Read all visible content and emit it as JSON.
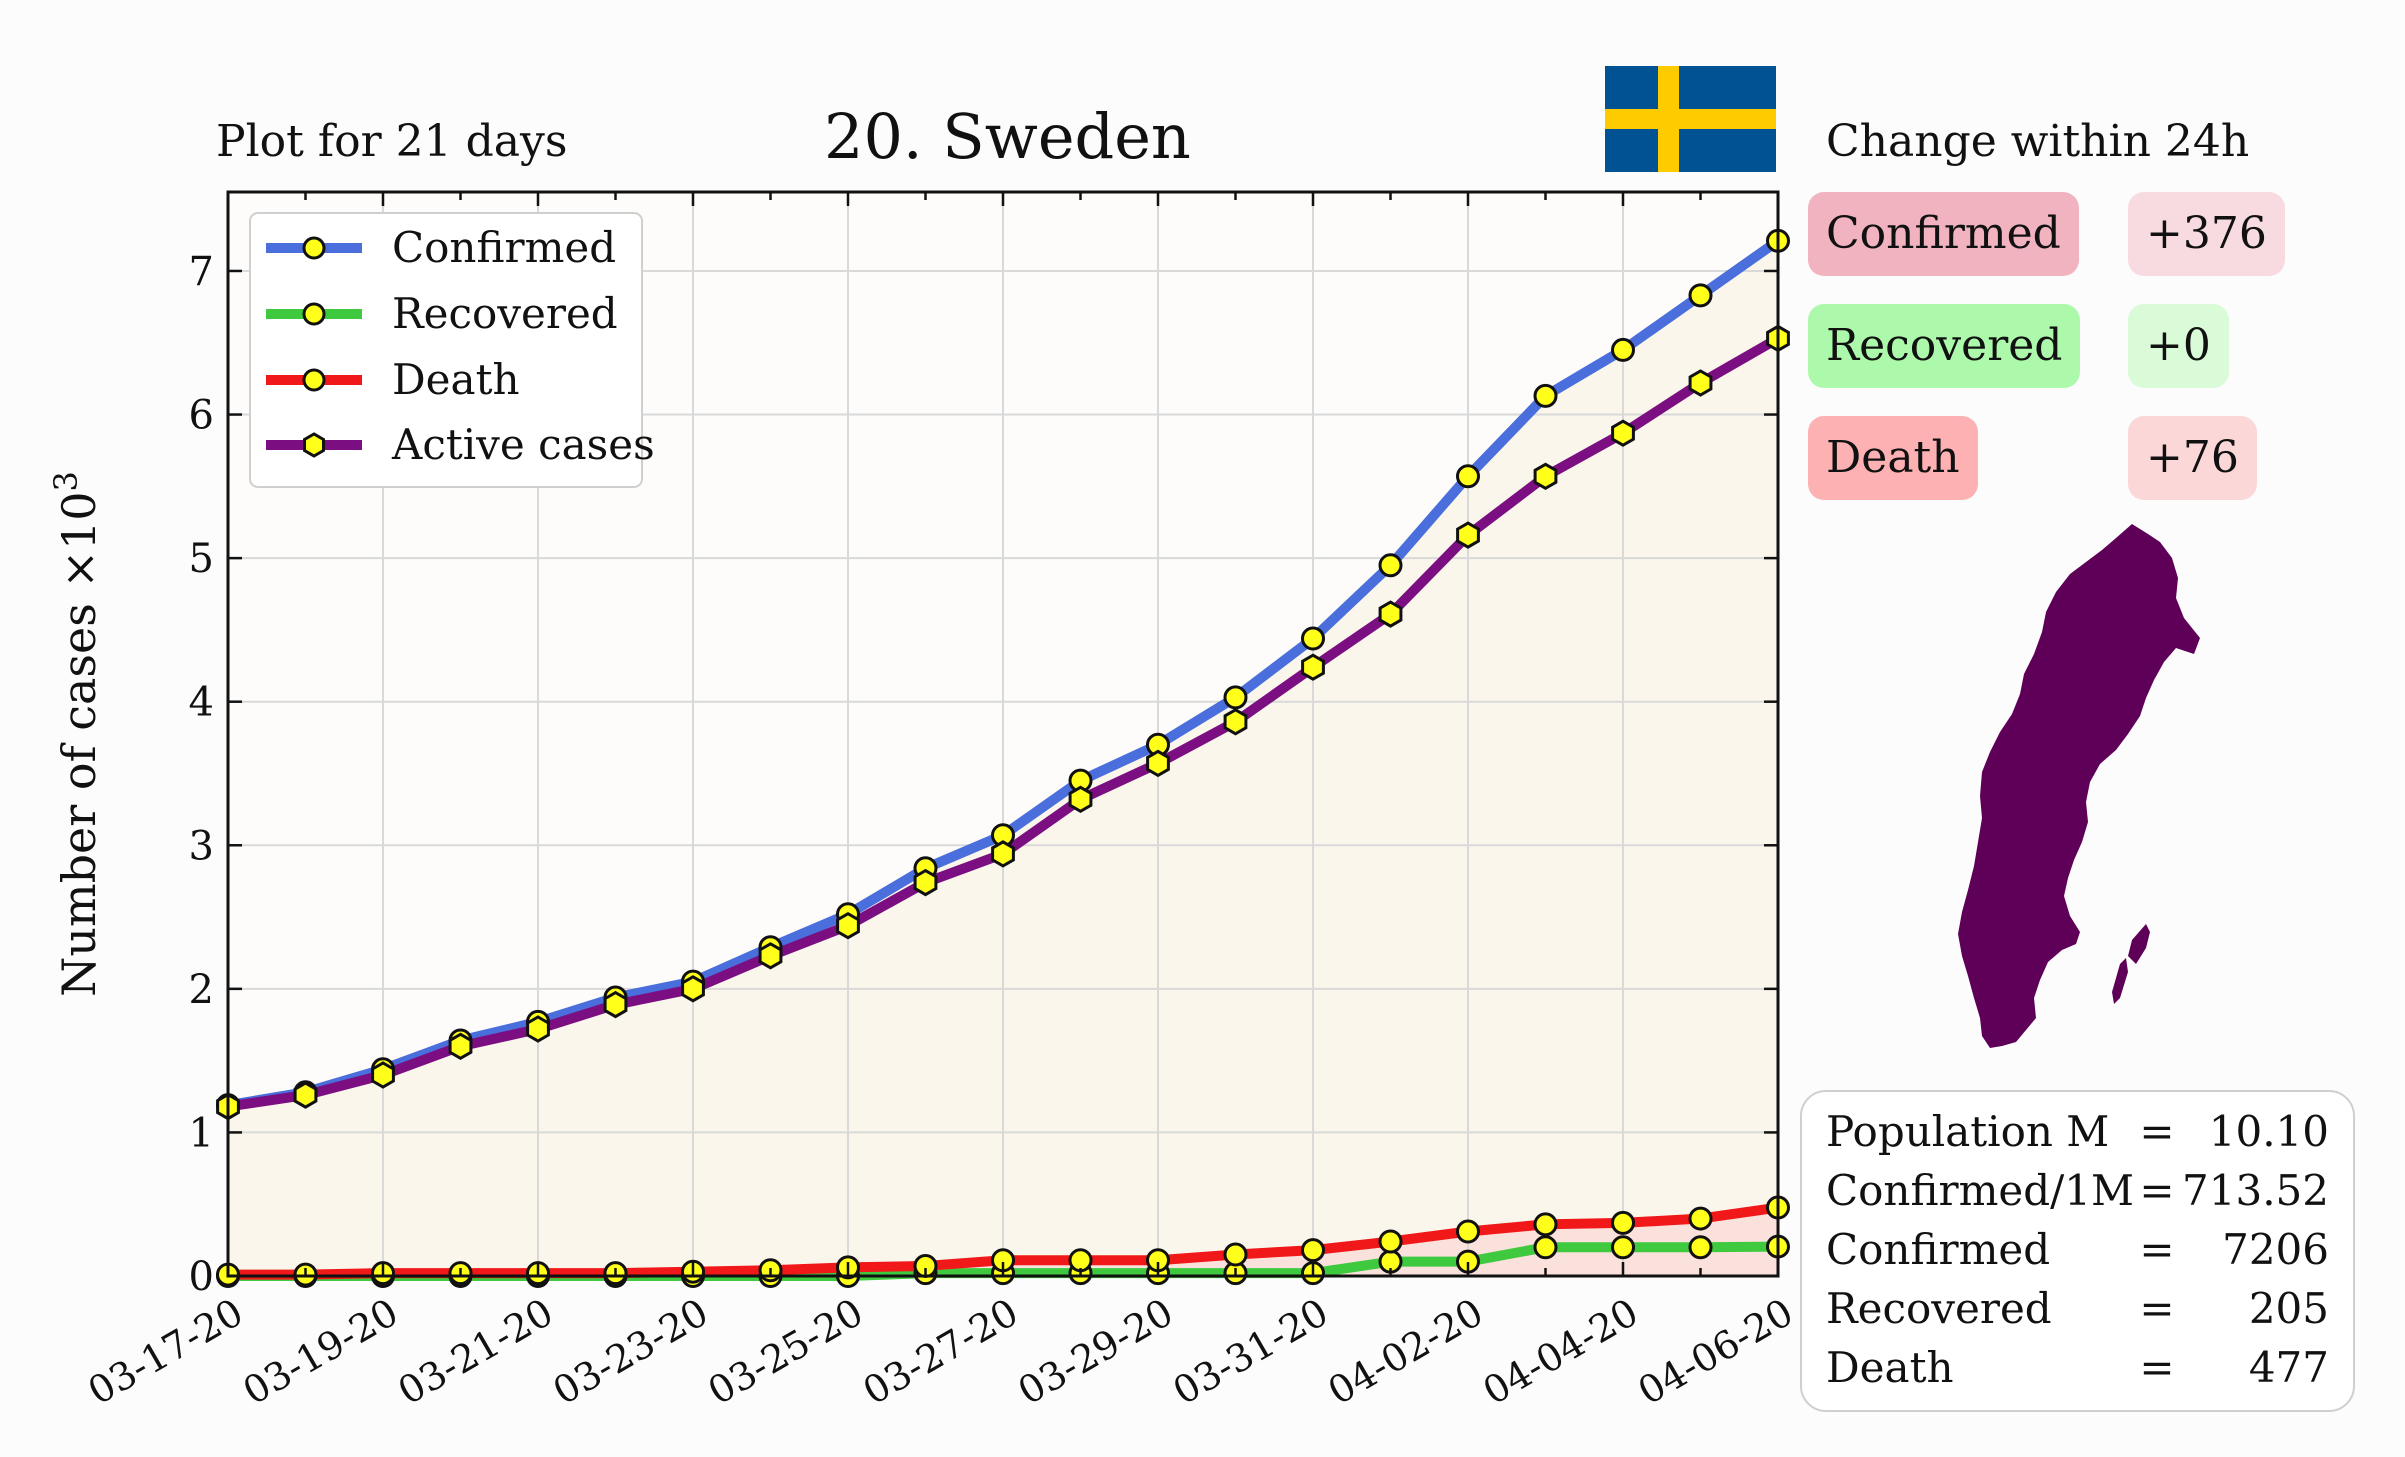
{
  "header": {
    "subtitle": "Plot for 21 days",
    "title": "20. Sweden",
    "change_title": "Change within 24h"
  },
  "flag": {
    "country": "Sweden",
    "blue": "#005293",
    "yellow": "#FECB00"
  },
  "changes": [
    {
      "label": "Confirmed",
      "value": "+376",
      "label_color": "#f1b3c0",
      "value_color": "#f8dbe0"
    },
    {
      "label": "Recovered",
      "value": "+0",
      "label_color": "#adf9ab",
      "value_color": "#d9fbd7"
    },
    {
      "label": "Death",
      "value": "+76",
      "label_color": "#fdb1b3",
      "value_color": "#fbd7d8"
    }
  ],
  "map": {
    "name": "sweden-map",
    "color": "#5e0058"
  },
  "stats": [
    {
      "label": "Population M",
      "eq": "=",
      "value": "10.10"
    },
    {
      "label": "Confirmed/1M",
      "eq": "=",
      "value": "713.52"
    },
    {
      "label": "Confirmed",
      "eq": "=",
      "value": "7206"
    },
    {
      "label": "Recovered",
      "eq": "=",
      "value": "205"
    },
    {
      "label": "Death",
      "eq": "=",
      "value": "477"
    }
  ],
  "chart_data": {
    "type": "line",
    "ylabel_text": "Number of cases ×10",
    "ylabel_exp": "3",
    "x": [
      "03-17-20",
      "03-18-20",
      "03-19-20",
      "03-20-20",
      "03-21-20",
      "03-22-20",
      "03-23-20",
      "03-24-20",
      "03-25-20",
      "03-26-20",
      "03-27-20",
      "03-28-20",
      "03-29-20",
      "03-30-20",
      "03-31-20",
      "04-01-20",
      "04-02-20",
      "04-03-20",
      "04-04-20",
      "04-05-20",
      "04-06-20"
    ],
    "xtick_labels": [
      "03-17-20",
      "03-19-20",
      "03-21-20",
      "03-23-20",
      "03-25-20",
      "03-27-20",
      "03-29-20",
      "03-31-20",
      "04-02-20",
      "04-04-20",
      "04-06-20"
    ],
    "yticks": [
      0,
      1,
      2,
      3,
      4,
      5,
      6,
      7
    ],
    "ylim": [
      0,
      7.55
    ],
    "grid": true,
    "legend_position": "top-left",
    "series": [
      {
        "name": "Confirmed",
        "color": "#4a6fdc",
        "marker": "circle",
        "values": [
          1.19,
          1.28,
          1.44,
          1.64,
          1.77,
          1.94,
          2.05,
          2.29,
          2.52,
          2.84,
          3.07,
          3.45,
          3.7,
          4.03,
          4.44,
          4.95,
          5.57,
          6.13,
          6.45,
          6.83,
          7.21
        ]
      },
      {
        "name": "Recovered",
        "color": "#3ec93e",
        "marker": "circle",
        "values": [
          0.0,
          0.0,
          0.0,
          0.0,
          0.0,
          0.0,
          0.0,
          0.0,
          0.0,
          0.02,
          0.02,
          0.02,
          0.02,
          0.02,
          0.02,
          0.1,
          0.1,
          0.2,
          0.2,
          0.2,
          0.205
        ]
      },
      {
        "name": "Death",
        "color": "#f01818",
        "marker": "circle",
        "values": [
          0.01,
          0.01,
          0.02,
          0.02,
          0.02,
          0.02,
          0.03,
          0.04,
          0.06,
          0.07,
          0.11,
          0.11,
          0.11,
          0.15,
          0.18,
          0.24,
          0.31,
          0.36,
          0.37,
          0.4,
          0.477
        ]
      },
      {
        "name": "Active cases",
        "color": "#7b0f82",
        "marker": "hexagon",
        "values": [
          1.18,
          1.26,
          1.4,
          1.6,
          1.72,
          1.89,
          2.0,
          2.23,
          2.44,
          2.74,
          2.94,
          3.32,
          3.57,
          3.86,
          4.24,
          4.61,
          5.16,
          5.57,
          5.87,
          6.22,
          6.53
        ]
      }
    ]
  }
}
